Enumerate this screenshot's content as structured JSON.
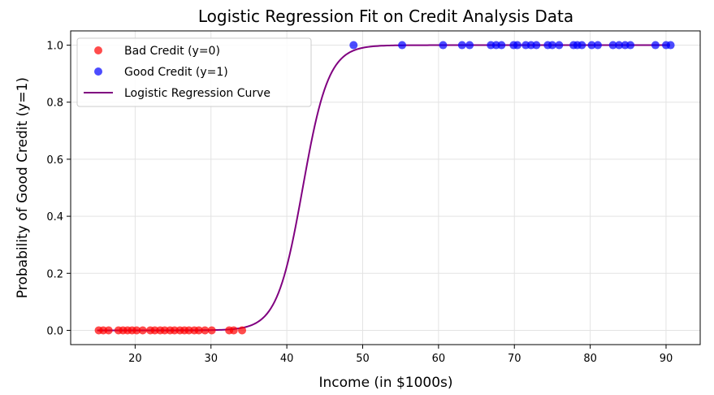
{
  "chart_data": {
    "type": "scatter",
    "title": "Logistic Regression Fit on Credit Analysis Data",
    "xlabel": "Income (in $1000s)",
    "ylabel": "Probability of Good Credit (y=1)",
    "xlim": [
      11.5,
      94.5
    ],
    "ylim": [
      -0.05,
      1.05
    ],
    "xticks": [
      20,
      30,
      40,
      50,
      60,
      70,
      80,
      90
    ],
    "yticks": [
      0.0,
      0.2,
      0.4,
      0.6,
      0.8,
      1.0
    ],
    "xtick_labels": [
      "20",
      "30",
      "40",
      "50",
      "60",
      "70",
      "80",
      "90"
    ],
    "ytick_labels": [
      "0.0",
      "0.2",
      "0.4",
      "0.6",
      "0.8",
      "1.0"
    ],
    "grid": true,
    "legend_position": "top-left",
    "series": [
      {
        "name": "Bad Credit (y=0)",
        "kind": "scatter",
        "color": "#ff0000",
        "alpha": 0.7,
        "points": [
          [
            15.2,
            0
          ],
          [
            15.8,
            0
          ],
          [
            16.5,
            0
          ],
          [
            17.8,
            0
          ],
          [
            18.4,
            0
          ],
          [
            19.0,
            0
          ],
          [
            19.6,
            0
          ],
          [
            20.2,
            0
          ],
          [
            21.0,
            0
          ],
          [
            22.0,
            0
          ],
          [
            22.6,
            0
          ],
          [
            23.3,
            0
          ],
          [
            23.9,
            0
          ],
          [
            24.6,
            0
          ],
          [
            25.2,
            0
          ],
          [
            25.9,
            0
          ],
          [
            26.5,
            0
          ],
          [
            27.1,
            0
          ],
          [
            27.8,
            0
          ],
          [
            28.4,
            0
          ],
          [
            29.2,
            0
          ],
          [
            30.1,
            0
          ],
          [
            32.4,
            0
          ],
          [
            33.0,
            0
          ],
          [
            34.1,
            0
          ]
        ]
      },
      {
        "name": "Good Credit (y=1)",
        "kind": "scatter",
        "color": "#0000ff",
        "alpha": 0.7,
        "points": [
          [
            48.8,
            1
          ],
          [
            55.2,
            1
          ],
          [
            60.6,
            1
          ],
          [
            63.1,
            1
          ],
          [
            64.1,
            1
          ],
          [
            66.9,
            1
          ],
          [
            67.6,
            1
          ],
          [
            68.3,
            1
          ],
          [
            69.9,
            1
          ],
          [
            70.4,
            1
          ],
          [
            71.5,
            1
          ],
          [
            72.2,
            1
          ],
          [
            72.9,
            1
          ],
          [
            74.4,
            1
          ],
          [
            75.0,
            1
          ],
          [
            75.9,
            1
          ],
          [
            77.8,
            1
          ],
          [
            78.3,
            1
          ],
          [
            78.9,
            1
          ],
          [
            80.2,
            1
          ],
          [
            81.0,
            1
          ],
          [
            83.0,
            1
          ],
          [
            83.8,
            1
          ],
          [
            84.6,
            1
          ],
          [
            85.3,
            1
          ],
          [
            88.6,
            1
          ],
          [
            90.0,
            1
          ],
          [
            90.6,
            1
          ]
        ]
      },
      {
        "name": "Logistic Regression Curve",
        "kind": "line",
        "color": "#800080",
        "curve": "logistic",
        "x_range": [
          15,
          90.5
        ],
        "midpoint": 42.1,
        "steepness": 0.59
      }
    ]
  }
}
